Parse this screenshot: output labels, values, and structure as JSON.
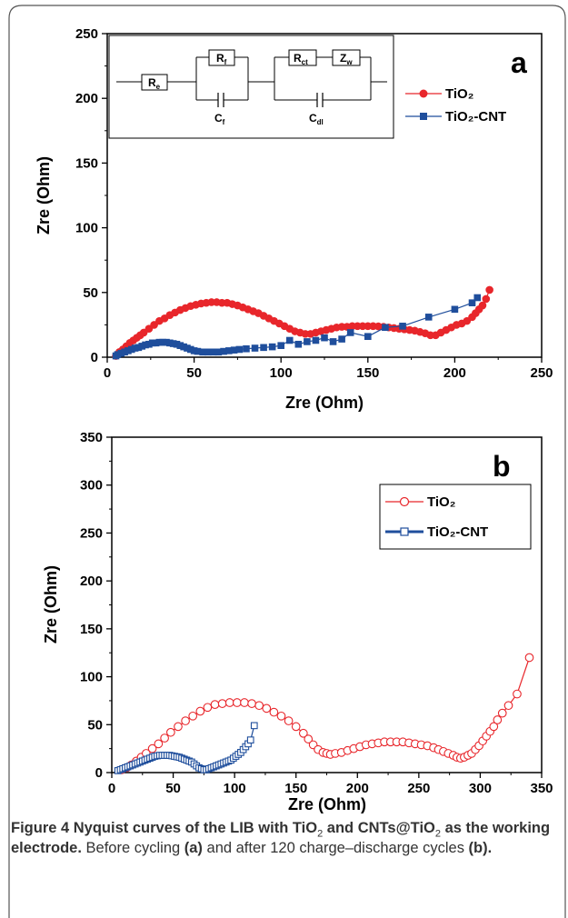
{
  "chart_data": [
    {
      "panel": "a",
      "type": "scatter",
      "xlabel": "Zre (Ohm)",
      "ylabel": "Zre (Ohm)",
      "xlim": [
        0,
        250
      ],
      "ylim": [
        0,
        250
      ],
      "xticks": [
        "0",
        "50",
        "100",
        "150",
        "200",
        "250"
      ],
      "yticks": [
        "0",
        "50",
        "100",
        "150",
        "200",
        "250"
      ],
      "legend_position": "top-right",
      "inset_labels": [
        "Re",
        "Rf",
        "Cf",
        "Rct",
        "Zw",
        "Cdl"
      ],
      "series": [
        {
          "name": "TiO2",
          "color": "#e8262b",
          "marker": "filled-circle",
          "x": [
            5,
            7,
            9,
            11,
            13,
            15,
            17,
            19,
            21,
            24,
            27,
            30,
            33,
            36,
            39,
            42,
            45,
            48,
            51,
            54,
            57,
            60,
            63,
            66,
            69,
            72,
            75,
            78,
            81,
            84,
            87,
            90,
            93,
            96,
            99,
            102,
            105,
            108,
            111,
            114,
            117,
            120,
            123,
            126,
            129,
            132,
            135,
            138,
            141,
            144,
            147,
            150,
            153,
            156,
            159,
            162,
            165,
            168,
            171,
            174,
            177,
            180,
            183,
            186,
            189,
            192,
            195,
            198,
            201,
            204,
            207,
            210,
            212,
            214,
            216,
            218,
            220
          ],
          "y": [
            1,
            4,
            6,
            8.5,
            11,
            13,
            15,
            17,
            19,
            22,
            25,
            28,
            30,
            32.5,
            34.5,
            36.5,
            38,
            39.5,
            40.5,
            41.5,
            42,
            42.5,
            42.5,
            42,
            42,
            41,
            40,
            38.5,
            37,
            35.5,
            34,
            32,
            30,
            28,
            26,
            24,
            22,
            20,
            19,
            18,
            18,
            19,
            20,
            21,
            22,
            23,
            23.5,
            23.5,
            24,
            24,
            24,
            24,
            24,
            23.8,
            23.5,
            23,
            22.5,
            22,
            21.5,
            21,
            20.5,
            19.5,
            18.5,
            17,
            17,
            19,
            21,
            23,
            25,
            26,
            28,
            31,
            34,
            37,
            40,
            45,
            52
          ]
        },
        {
          "name": "TiO2-CNT",
          "color": "#1f4e9c",
          "marker": "filled-square",
          "x": [
            5,
            6,
            8,
            10,
            12,
            14,
            16,
            18,
            20,
            22,
            24,
            26,
            28,
            30,
            32,
            34,
            36,
            38,
            40,
            42,
            44,
            46,
            48,
            50,
            52,
            55,
            58,
            61,
            64,
            67,
            70,
            73,
            76,
            80,
            85,
            90,
            95,
            100,
            105,
            110,
            115,
            120,
            125,
            130,
            135,
            140,
            150,
            160,
            170,
            185,
            200,
            210,
            213
          ],
          "y": [
            1,
            2,
            3,
            4,
            5,
            6,
            7,
            7.5,
            8.5,
            9.5,
            10,
            11,
            11,
            11.5,
            11.5,
            11.5,
            11,
            10.5,
            10,
            9,
            8,
            7,
            6,
            5,
            4.5,
            4,
            4,
            4,
            4,
            4.5,
            5,
            5.5,
            6,
            6.5,
            7,
            7.5,
            8,
            9,
            13,
            10,
            12,
            13,
            15,
            12,
            14,
            19,
            16,
            23,
            24,
            31,
            37,
            42,
            46
          ]
        }
      ]
    },
    {
      "panel": "b",
      "type": "scatter",
      "xlabel": "Zre (Ohm)",
      "ylabel": "Zre (Ohm)",
      "xlim": [
        0,
        350
      ],
      "ylim": [
        0,
        350
      ],
      "xticks": [
        "0",
        "50",
        "100",
        "150",
        "200",
        "250",
        "300",
        "350"
      ],
      "yticks": [
        "0",
        "50",
        "100",
        "150",
        "200",
        "250",
        "300",
        "350"
      ],
      "legend_position": "top-right",
      "series": [
        {
          "name": "TiO2",
          "color": "#e8262b",
          "marker": "open-circle",
          "x": [
            8,
            12,
            16,
            20,
            24,
            28,
            33,
            38,
            43,
            48,
            54,
            60,
            66,
            72,
            78,
            84,
            90,
            96,
            102,
            108,
            114,
            120,
            126,
            132,
            138,
            144,
            150,
            156,
            160,
            164,
            168,
            172,
            175,
            178,
            182,
            187,
            192,
            197,
            202,
            207,
            212,
            217,
            222,
            227,
            232,
            237,
            242,
            247,
            252,
            257,
            262,
            266,
            270,
            274,
            278,
            281,
            284,
            287,
            290,
            293,
            296,
            299,
            302,
            305,
            308,
            311,
            314,
            318,
            323,
            330,
            340
          ],
          "y": [
            3,
            5,
            8,
            12,
            16,
            20,
            25,
            30,
            36,
            42,
            48,
            54,
            59,
            64,
            68,
            71,
            72,
            73,
            73,
            73,
            72,
            70,
            67,
            63,
            59,
            54,
            48,
            41,
            35,
            29,
            24,
            21,
            20,
            19,
            20,
            21,
            23,
            25,
            27,
            29,
            30,
            31,
            32,
            32,
            32,
            32,
            31,
            30,
            29,
            28,
            26,
            24,
            22,
            20,
            18,
            16,
            15,
            16,
            18,
            20,
            24,
            28,
            33,
            38,
            43,
            48,
            55,
            62,
            70,
            82,
            120
          ]
        },
        {
          "name": "TiO2-CNT",
          "color": "#1f4e9c",
          "marker": "open-square",
          "x": [
            5,
            7,
            9,
            11,
            13,
            15,
            17,
            19,
            21,
            23,
            25,
            27,
            29,
            31,
            33,
            35,
            37,
            39,
            41,
            43,
            45,
            47,
            49,
            51,
            53,
            55,
            57,
            59,
            61,
            63,
            65,
            67,
            69,
            71,
            73,
            75,
            77,
            79,
            81,
            83,
            85,
            87,
            89,
            91,
            93,
            95,
            97,
            99,
            101,
            103,
            105,
            107,
            109,
            111,
            113,
            116
          ],
          "y": [
            2,
            3,
            4,
            5,
            6,
            7,
            8,
            9,
            10,
            11,
            12,
            13,
            14,
            15,
            16,
            17,
            17.5,
            18,
            18,
            18,
            18,
            18,
            17.5,
            17,
            16.5,
            16,
            15,
            14,
            13,
            12,
            11,
            9,
            7,
            5,
            4,
            3,
            3,
            4,
            5,
            6,
            7,
            8,
            9,
            10,
            11,
            12,
            13,
            15,
            17,
            19,
            21,
            24,
            27,
            30,
            34,
            49
          ]
        }
      ]
    }
  ],
  "panel_labels": {
    "a": "a",
    "b": "b"
  },
  "legend": {
    "tio2": "TiO₂",
    "tio2_cnt": "TiO₂-CNT"
  },
  "caption": {
    "bold_1": "Figure 4 Nyquist curves of the LIB with TiO",
    "sub_1": "2",
    "bold_2": " and CNTs@TiO",
    "sub_2": "2",
    "bold_3": " as the working electrode.",
    "text_1": " Before cycling ",
    "bold_a": "(a)",
    "text_2": " and after 120 charge–discharge cycles ",
    "bold_b": "(b)."
  }
}
